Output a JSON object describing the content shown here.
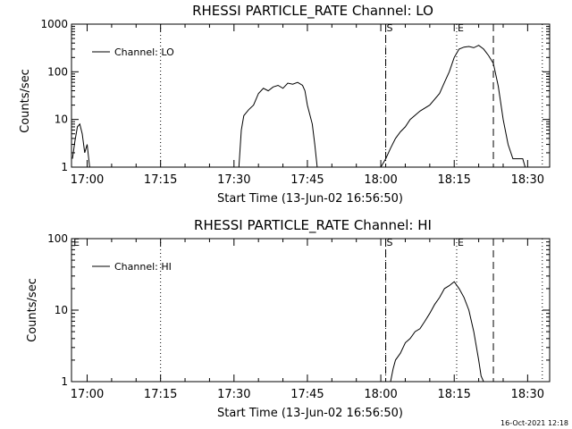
{
  "chart_data": [
    {
      "type": "line",
      "title": "RHESSI PARTICLE_RATE Channel: LO",
      "xlabel": "Start Time (13-Jun-02 16:56:50)",
      "ylabel": "Counts/sec",
      "y_scale": "log",
      "ylim": [
        1,
        1000
      ],
      "y_ticks": [
        "1",
        "10",
        "100",
        "1000"
      ],
      "x_ticks": [
        "17:00",
        "17:15",
        "17:30",
        "17:45",
        "18:00",
        "18:15",
        "18:30"
      ],
      "xlim_minutes": [
        56.8,
        154.5
      ],
      "legend": {
        "label": "Channel: LO",
        "position": "top-left"
      },
      "markers": [
        {
          "label": "S",
          "minute": 121.0
        },
        {
          "label": "E",
          "minute": 135.5
        }
      ],
      "dotted_lines_minutes": [
        75,
        121,
        135.5,
        153
      ],
      "dashed_lines_minutes": [
        121,
        143
      ],
      "series": [
        {
          "x": [
            57.0,
            57.5,
            58.0,
            58.5,
            59.0,
            59.5,
            60.0,
            60.5
          ],
          "y": [
            1.5,
            3.5,
            7.0,
            8.0,
            5.0,
            2.0,
            3.0,
            1.0
          ]
        },
        {
          "x": [
            91.0,
            91.5,
            92.0,
            93.0,
            94.0,
            95.0,
            96.0,
            97.0,
            98.0,
            99.0,
            100.0,
            101.0,
            102.0,
            103.0,
            104.0,
            104.5,
            105.0,
            106.0,
            106.5,
            107.0
          ],
          "y": [
            1.0,
            6.0,
            12.0,
            16.0,
            20.0,
            35.0,
            45.0,
            40.0,
            48.0,
            52.0,
            45.0,
            58.0,
            55.0,
            60.0,
            52.0,
            40.0,
            20.0,
            8.0,
            3.0,
            1.0
          ]
        },
        {
          "x": [
            120.0,
            121.0,
            122.0,
            123.0,
            124.0,
            125.0,
            126.0,
            128.0,
            130.0,
            132.0,
            133.0,
            134.0,
            135.0,
            136.0,
            137.0,
            138.0,
            139.0,
            140.0,
            141.0,
            142.0,
            143.0,
            144.0,
            145.0,
            146.0,
            147.0,
            148.0,
            149.0,
            149.5
          ],
          "y": [
            1.0,
            1.5,
            2.5,
            4.0,
            5.5,
            7.0,
            10.0,
            15.0,
            20.0,
            35.0,
            60.0,
            100.0,
            200.0,
            300.0,
            330.0,
            340.0,
            320.0,
            360.0,
            300.0,
            220.0,
            150.0,
            50.0,
            10.0,
            3.0,
            1.5,
            1.5,
            1.5,
            1.0
          ]
        }
      ]
    },
    {
      "type": "line",
      "title": "RHESSI PARTICLE_RATE Channel: HI",
      "xlabel": "Start Time (13-Jun-02 16:56:50)",
      "ylabel": "Counts/sec",
      "y_scale": "log",
      "ylim": [
        1,
        100
      ],
      "y_ticks": [
        "1",
        "10",
        "100"
      ],
      "x_ticks": [
        "17:00",
        "17:15",
        "17:30",
        "17:45",
        "18:00",
        "18:15",
        "18:30"
      ],
      "xlim_minutes": [
        56.8,
        154.5
      ],
      "legend": {
        "label": "Channel: HI",
        "position": "top-left"
      },
      "markers": [
        {
          "label": "E",
          "minute": 57.0
        },
        {
          "label": "S",
          "minute": 121.0
        },
        {
          "label": "E",
          "minute": 135.5
        }
      ],
      "dotted_lines_minutes": [
        75,
        121,
        135.5,
        153
      ],
      "dashed_lines_minutes": [
        121,
        143
      ],
      "series": [
        {
          "x": [
            122.0,
            122.5,
            123.0,
            124.0,
            125.0,
            126.0,
            127.0,
            128.0,
            129.0,
            130.0,
            131.0,
            132.0,
            133.0,
            134.0,
            135.0,
            136.0,
            137.0,
            138.0,
            139.0,
            140.0,
            140.5,
            141.0
          ],
          "y": [
            1.0,
            1.5,
            2.0,
            2.5,
            3.5,
            4.0,
            5.0,
            5.5,
            7.0,
            9.0,
            12.0,
            15.0,
            20.0,
            22.0,
            25.0,
            20.0,
            15.0,
            10.0,
            5.0,
            2.0,
            1.2,
            1.0
          ]
        }
      ]
    }
  ],
  "footer_stamp": "16-Oct-2021 12:18"
}
